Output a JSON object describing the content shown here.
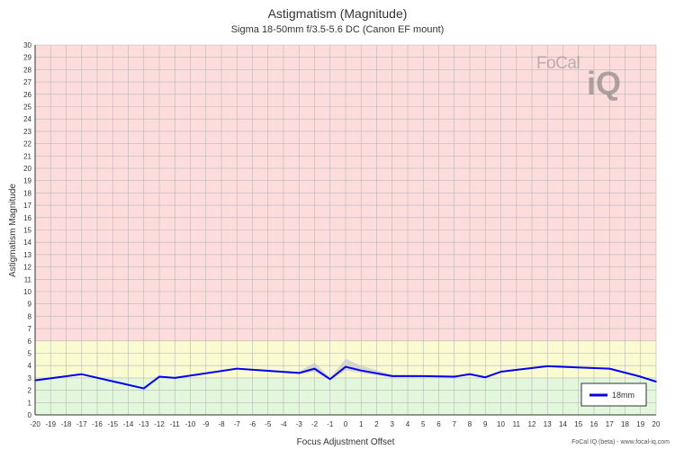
{
  "chart_data": {
    "type": "line",
    "title": "Astigmatism (Magnitude)",
    "subtitle": "Sigma 18-50mm f/3.5-5.6 DC (Canon EF mount)",
    "xlabel": "Focus Adjustment Offset",
    "ylabel": "Astigmatism Magnitude",
    "xlim": [
      -20,
      20
    ],
    "ylim": [
      0,
      30
    ],
    "grid": true,
    "legend_position": "bottom-right",
    "zones": [
      {
        "from": 0,
        "to": 3,
        "color": "#e2f7dc"
      },
      {
        "from": 3,
        "to": 6,
        "color": "#fbfbd2"
      },
      {
        "from": 6,
        "to": 30,
        "color": "#fddcdc"
      }
    ],
    "series": [
      {
        "name": "18mm",
        "color": "#0000ee",
        "x": [
          -20,
          -17,
          -13,
          -12,
          -11,
          -7,
          -3,
          -2,
          -1,
          0,
          1,
          3,
          5,
          7,
          8,
          9,
          10,
          13,
          17,
          19,
          20
        ],
        "y": [
          2.8,
          3.3,
          2.15,
          3.1,
          3.0,
          3.75,
          3.4,
          3.75,
          2.9,
          3.9,
          3.6,
          3.15,
          3.15,
          3.1,
          3.3,
          3.05,
          3.5,
          3.95,
          3.75,
          3.1,
          2.7
        ]
      }
    ],
    "band": {
      "color": "#c8c8d2",
      "x": [
        -20,
        -17,
        -13,
        -12,
        -11,
        -7,
        -3,
        -2,
        -1,
        0,
        1,
        3,
        5,
        7,
        8,
        9,
        10,
        13,
        17,
        19,
        20
      ],
      "upper": [
        2.85,
        3.35,
        2.2,
        3.15,
        3.05,
        3.8,
        3.5,
        4.25,
        3.0,
        4.55,
        4.0,
        3.25,
        3.2,
        3.15,
        3.35,
        3.1,
        3.55,
        4.0,
        3.8,
        3.15,
        2.75
      ],
      "lower": [
        2.75,
        3.25,
        2.1,
        3.05,
        2.95,
        3.7,
        3.3,
        3.5,
        2.8,
        3.6,
        3.4,
        3.05,
        3.1,
        3.05,
        3.25,
        3.0,
        3.45,
        3.9,
        3.7,
        3.05,
        2.65
      ]
    }
  },
  "logo": {
    "brand_text": "FoCal iQ"
  },
  "footer": "FoCal IQ (beta) - www.focal-iq.com"
}
